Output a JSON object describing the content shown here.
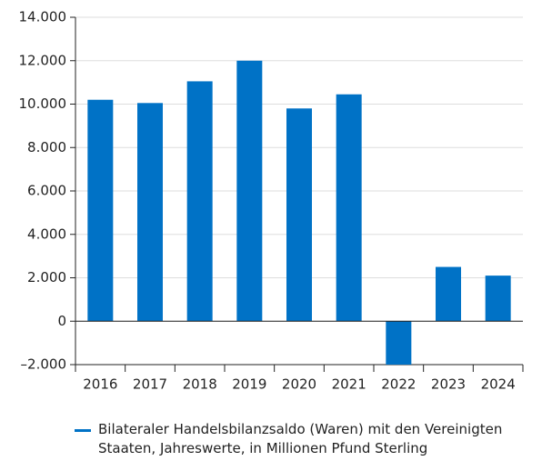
{
  "chart_data": {
    "type": "bar",
    "categories": [
      "2016",
      "2017",
      "2018",
      "2019",
      "2020",
      "2021",
      "2022",
      "2023",
      "2024"
    ],
    "series": [
      {
        "name": "Bilateraler Handelsbilanzsaldo (Waren) mit den Vereinigten Staaten, Jahreswerte, in Millionen Pfund Sterling",
        "color": "#0072c6",
        "values": [
          10200,
          10050,
          11050,
          12000,
          9800,
          10450,
          -2000,
          2500,
          2100
        ]
      }
    ],
    "ylim": [
      -2000,
      14000
    ],
    "yticks": [
      {
        "value": -2000,
        "label": "–2.000"
      },
      0,
      {
        "value": 2000,
        "label": "2.000"
      },
      {
        "value": 4000,
        "label": "4.000"
      },
      {
        "value": 6000,
        "label": "6.000"
      },
      {
        "value": 8000,
        "label": "8.000"
      },
      {
        "value": 10000,
        "label": "10.000"
      },
      {
        "value": 12000,
        "label": "12.000"
      },
      {
        "value": 14000,
        "label": "14.000"
      }
    ],
    "grid": true,
    "legend": "bottom"
  }
}
